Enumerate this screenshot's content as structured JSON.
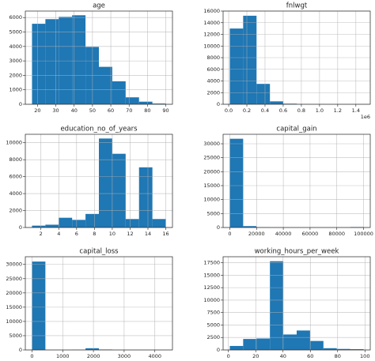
{
  "chart_data": [
    {
      "type": "histogram",
      "title": "age",
      "bins": [
        17,
        24.3,
        31.6,
        38.9,
        46.2,
        53.5,
        60.8,
        68.1,
        75.4,
        82.7,
        90
      ],
      "values": [
        5570,
        5890,
        6050,
        6160,
        3970,
        2590,
        1590,
        480,
        180,
        50
      ],
      "color": "#1f77b4",
      "xlim": [
        13.35,
        93.65
      ],
      "ylim": [
        0,
        6450
      ],
      "xticks": [
        20,
        30,
        40,
        50,
        60,
        70,
        80,
        90
      ],
      "yticks": [
        0,
        1000,
        2000,
        3000,
        4000,
        5000,
        6000
      ],
      "grid": true
    },
    {
      "type": "histogram",
      "title": "fnlwgt",
      "bins": [
        12285,
        159527,
        306769,
        454011,
        601253,
        748495,
        895737,
        1042979,
        1190221,
        1337463,
        1484705
      ],
      "values": [
        13000,
        15200,
        3500,
        500,
        100,
        30,
        10,
        5,
        2,
        2
      ],
      "color": "#1f77b4",
      "xlim": [
        -61336,
        1558326
      ],
      "ylim": [
        0,
        16000
      ],
      "xticks": [
        {
          "value": 0,
          "label": "0.0"
        },
        {
          "value": 200000,
          "label": "0.2"
        },
        {
          "value": 400000,
          "label": "0.4"
        },
        {
          "value": 600000,
          "label": "0.6"
        },
        {
          "value": 800000,
          "label": "0.8"
        },
        {
          "value": 1000000,
          "label": "1.0"
        },
        {
          "value": 1200000,
          "label": "1.2"
        },
        {
          "value": 1400000,
          "label": "1.4"
        }
      ],
      "yticks": [
        0,
        2000,
        4000,
        6000,
        8000,
        10000,
        12000,
        14000,
        16000
      ],
      "offset_text": "1e6",
      "grid": true
    },
    {
      "type": "histogram",
      "title": "education_no_of_years",
      "bins": [
        1,
        2.5,
        4,
        5.5,
        7,
        8.5,
        10,
        11.5,
        13,
        14.5,
        16
      ],
      "values": [
        220,
        330,
        1150,
        900,
        1600,
        10500,
        8700,
        1000,
        7100,
        1000
      ],
      "color": "#1f77b4",
      "xlim": [
        0.25,
        16.75
      ],
      "ylim": [
        0,
        11000
      ],
      "xticks": [
        2,
        4,
        6,
        8,
        10,
        12,
        14,
        16
      ],
      "yticks": [
        0,
        2000,
        4000,
        6000,
        8000,
        10000
      ],
      "grid": true
    },
    {
      "type": "histogram",
      "title": "capital_gain",
      "bins": [
        0,
        9999.9,
        19999.8,
        29999.7,
        39999.6,
        49999.5,
        59999.4,
        69999.3,
        79999.2,
        89999.1,
        99999
      ],
      "values": [
        31800,
        500,
        100,
        20,
        5,
        0,
        0,
        0,
        0,
        160
      ],
      "color": "#1f77b4",
      "xlim": [
        -5000,
        104999
      ],
      "ylim": [
        0,
        33400
      ],
      "xticks": [
        0,
        20000,
        40000,
        60000,
        80000,
        100000
      ],
      "yticks": [
        0,
        5000,
        10000,
        15000,
        20000,
        25000,
        30000
      ],
      "grid": true
    },
    {
      "type": "histogram",
      "title": "capital_loss",
      "bins": [
        0,
        435.6,
        871.2,
        1306.8,
        1742.4,
        2178,
        2613.6,
        3049.2,
        3484.8,
        3920.4,
        4356
      ],
      "values": [
        31000,
        0,
        0,
        50,
        600,
        150,
        10,
        0,
        0,
        2
      ],
      "color": "#1f77b4",
      "xlim": [
        -217.8,
        4573.8
      ],
      "ylim": [
        0,
        32700
      ],
      "xticks": [
        0,
        1000,
        2000,
        3000,
        4000
      ],
      "yticks": [
        0,
        5000,
        10000,
        15000,
        20000,
        25000,
        30000
      ],
      "grid": true
    },
    {
      "type": "histogram",
      "title": "working_hours_per_week",
      "bins": [
        1,
        10.8,
        20.6,
        30.4,
        40.2,
        50,
        59.8,
        69.6,
        79.4,
        89.2,
        99
      ],
      "values": [
        800,
        2200,
        2300,
        17800,
        3100,
        3900,
        1800,
        350,
        200,
        150
      ],
      "color": "#1f77b4",
      "xlim": [
        -3.9,
        103.9
      ],
      "ylim": [
        0,
        18700
      ],
      "xticks": [
        0,
        20,
        40,
        60,
        80,
        100
      ],
      "yticks": [
        0,
        2500,
        5000,
        7500,
        10000,
        12500,
        15000,
        17500
      ],
      "grid": true
    }
  ]
}
